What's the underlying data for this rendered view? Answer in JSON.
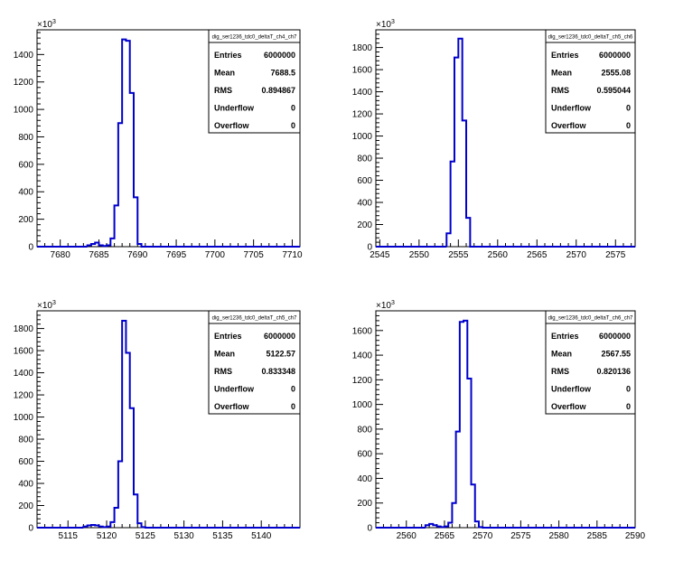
{
  "chart_data": [
    {
      "type": "bar",
      "histogram_name": "dig_ser1236_tdc0_deltaT_ch4_ch7",
      "y_multiplier": "×10",
      "y_multiplier_exp": "3",
      "xlim": [
        7677,
        7711
      ],
      "ylim": [
        0,
        1580
      ],
      "xticks": [
        "7680",
        "7685",
        "7690",
        "7695",
        "7700",
        "7705",
        "7710"
      ],
      "yticks": [
        "0",
        "200",
        "400",
        "600",
        "800",
        "1000",
        "1200",
        "1400"
      ],
      "bin_edges": [
        7683.5,
        7684,
        7684.5,
        7685,
        7685.5,
        7686,
        7686.5,
        7687,
        7687.5,
        7688,
        7688.5,
        7689,
        7689.5,
        7690,
        7690.5
      ],
      "values": [
        10,
        20,
        30,
        10,
        5,
        10,
        60,
        300,
        900,
        1510,
        1500,
        1120,
        360,
        20
      ],
      "stats": [
        {
          "label": "Entries",
          "value": "6000000"
        },
        {
          "label": "Mean",
          "value": "7688.5"
        },
        {
          "label": "RMS",
          "value": "0.894867"
        },
        {
          "label": "Underflow",
          "value": "0"
        },
        {
          "label": "Overflow",
          "value": "0"
        }
      ]
    },
    {
      "type": "bar",
      "histogram_name": "dig_ser1236_tdc0_deltaT_ch5_ch6",
      "y_multiplier": "×10",
      "y_multiplier_exp": "3",
      "xlim": [
        2544.5,
        2577.5
      ],
      "ylim": [
        0,
        1960
      ],
      "xticks": [
        "2545",
        "2550",
        "2555",
        "2560",
        "2565",
        "2570",
        "2575"
      ],
      "yticks": [
        "0",
        "200",
        "400",
        "600",
        "800",
        "1000",
        "1200",
        "1400",
        "1600",
        "1800"
      ],
      "bin_edges": [
        2553.5,
        2554,
        2554.5,
        2555,
        2555.5,
        2556,
        2556.5
      ],
      "values": [
        120,
        770,
        1710,
        1880,
        1140,
        260
      ],
      "stats": [
        {
          "label": "Entries",
          "value": "6000000"
        },
        {
          "label": "Mean",
          "value": "2555.08"
        },
        {
          "label": "RMS",
          "value": "0.595044"
        },
        {
          "label": "Underflow",
          "value": "0"
        },
        {
          "label": "Overflow",
          "value": "0"
        }
      ]
    },
    {
      "type": "bar",
      "histogram_name": "dig_ser1236_tdc0_deltaT_ch5_ch7",
      "y_multiplier": "×10",
      "y_multiplier_exp": "3",
      "xlim": [
        5111,
        5145
      ],
      "ylim": [
        0,
        1960
      ],
      "xticks": [
        "5115",
        "5120",
        "5125",
        "5130",
        "5135",
        "5140"
      ],
      "yticks": [
        "0",
        "200",
        "400",
        "600",
        "800",
        "1000",
        "1200",
        "1400",
        "1600",
        "1800"
      ],
      "bin_edges": [
        5117,
        5117.5,
        5118,
        5118.5,
        5119,
        5119.5,
        5120,
        5120.5,
        5121,
        5121.5,
        5122,
        5122.5,
        5123,
        5123.5,
        5124,
        5124.5,
        5125
      ],
      "values": [
        10,
        20,
        25,
        20,
        10,
        5,
        10,
        50,
        180,
        600,
        1870,
        1580,
        1080,
        300,
        40,
        5
      ],
      "stats": [
        {
          "label": "Entries",
          "value": "6000000"
        },
        {
          "label": "Mean",
          "value": "5122.57"
        },
        {
          "label": "RMS",
          "value": "0.833348"
        },
        {
          "label": "Underflow",
          "value": "0"
        },
        {
          "label": "Overflow",
          "value": "0"
        }
      ]
    },
    {
      "type": "bar",
      "histogram_name": "dig_ser1236_tdc0_deltaT_ch6_ch7",
      "y_multiplier": "×10",
      "y_multiplier_exp": "3",
      "xlim": [
        2556,
        2590
      ],
      "ylim": [
        0,
        1760
      ],
      "xticks": [
        "2560",
        "2565",
        "2570",
        "2575",
        "2580",
        "2585",
        "2590"
      ],
      "yticks": [
        "0",
        "200",
        "400",
        "600",
        "800",
        "1000",
        "1200",
        "1400",
        "1600"
      ],
      "bin_edges": [
        2562.5,
        2563,
        2563.5,
        2564,
        2564.5,
        2565,
        2565.5,
        2566,
        2566.5,
        2567,
        2567.5,
        2568,
        2568.5,
        2569,
        2569.5,
        2570
      ],
      "values": [
        20,
        30,
        20,
        10,
        5,
        10,
        40,
        200,
        780,
        1670,
        1680,
        1210,
        350,
        50,
        5
      ],
      "stats": [
        {
          "label": "Entries",
          "value": "6000000"
        },
        {
          "label": "Mean",
          "value": "2567.55"
        },
        {
          "label": "RMS",
          "value": "0.820136"
        },
        {
          "label": "Underflow",
          "value": "0"
        },
        {
          "label": "Overflow",
          "value": "0"
        }
      ]
    }
  ],
  "colors": {
    "histogram_line": "#0000cc",
    "axis": "#000000",
    "background": "#ffffff"
  }
}
